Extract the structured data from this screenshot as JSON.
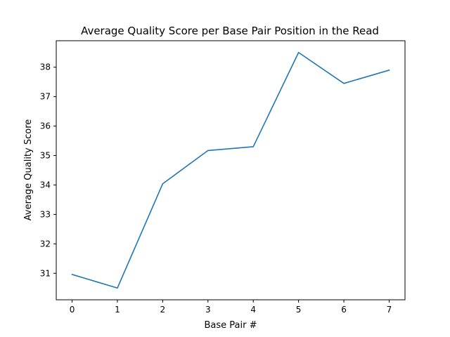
{
  "chart_data": {
    "type": "line",
    "title": "Average Quality Score per Base Pair Position in the Read",
    "xlabel": "Base Pair #",
    "ylabel": "Average Quality Score",
    "x": [
      0,
      1,
      2,
      3,
      4,
      5,
      6,
      7
    ],
    "series": [
      {
        "values": [
          30.96,
          30.5,
          34.04,
          35.17,
          35.3,
          38.5,
          37.45,
          37.9
        ]
      }
    ],
    "xlim": [
      -0.35,
      7.35
    ],
    "ylim": [
      30.1,
      38.9
    ],
    "xticks": [
      0,
      1,
      2,
      3,
      4,
      5,
      6,
      7
    ],
    "yticks": [
      31,
      32,
      33,
      34,
      35,
      36,
      37,
      38
    ],
    "grid": false,
    "colors": {
      "line": "#1f77b4",
      "axes": "#000000"
    }
  }
}
